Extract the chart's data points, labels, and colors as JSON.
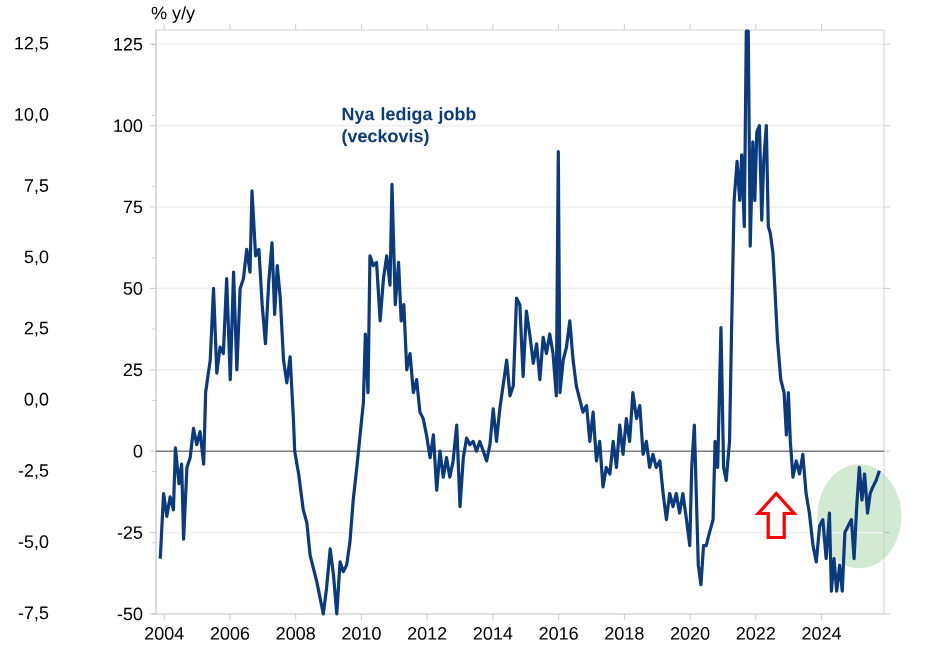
{
  "chart_data": {
    "type": "line",
    "ylabel": "% y/y",
    "xlim": [
      2003.75,
      2025.9
    ],
    "xticks": [
      2004,
      2006,
      2008,
      2010,
      2012,
      2014,
      2016,
      2018,
      2020,
      2022,
      2024
    ],
    "ylim": [
      -50,
      129.375
    ],
    "yticks": [
      -50,
      -25,
      0,
      25,
      50,
      75,
      100,
      125
    ],
    "y2lim": [
      -7.5,
      13
    ],
    "y2ticks": [
      {
        "value": -7.5,
        "label": "-7,5"
      },
      {
        "value": -5,
        "label": "-5,0"
      },
      {
        "value": -2.5,
        "label": "-2,5"
      },
      {
        "value": 0,
        "label": "0,0"
      },
      {
        "value": 2.5,
        "label": "2,5"
      },
      {
        "value": 5,
        "label": "5,0"
      },
      {
        "value": 7.5,
        "label": "7,5"
      },
      {
        "value": 10,
        "label": "10,0"
      },
      {
        "value": 12.5,
        "label": "12,5"
      }
    ],
    "grid": "y",
    "ref_lines": [
      {
        "axis": "y",
        "value": 0,
        "color": "#808080"
      }
    ],
    "series": [
      {
        "name": "Nya lediga jobb (veckovis)",
        "color": "#0b3a7e",
        "x": [
          2003.88,
          2003.98,
          2004.08,
          2004.18,
          2004.28,
          2004.34,
          2004.45,
          2004.53,
          2004.59,
          2004.69,
          2004.79,
          2004.89,
          2004.99,
          2005.09,
          2005.2,
          2005.26,
          2005.4,
          2005.5,
          2005.6,
          2005.7,
          2005.8,
          2005.9,
          2006.01,
          2006.11,
          2006.21,
          2006.31,
          2006.41,
          2006.51,
          2006.61,
          2006.67,
          2006.78,
          2006.88,
          2006.98,
          2007.08,
          2007.18,
          2007.28,
          2007.36,
          2007.44,
          2007.53,
          2007.63,
          2007.73,
          2007.83,
          2007.93,
          2007.97,
          2008.09,
          2008.23,
          2008.34,
          2008.44,
          2008.54,
          2008.64,
          2008.74,
          2008.84,
          2008.94,
          2009.05,
          2009.15,
          2009.25,
          2009.35,
          2009.45,
          2009.55,
          2009.65,
          2009.75,
          2009.86,
          2009.96,
          2010.06,
          2010.12,
          2010.2,
          2010.26,
          2010.36,
          2010.46,
          2010.57,
          2010.67,
          2010.77,
          2010.87,
          2010.93,
          2011.03,
          2011.13,
          2011.21,
          2011.29,
          2011.38,
          2011.48,
          2011.58,
          2011.68,
          2011.78,
          2011.88,
          2011.98,
          2012.09,
          2012.19,
          2012.29,
          2012.39,
          2012.49,
          2012.59,
          2012.69,
          2012.79,
          2012.9,
          2013.0,
          2013.1,
          2013.2,
          2013.3,
          2013.4,
          2013.5,
          2013.6,
          2013.71,
          2013.81,
          2013.91,
          2014.01,
          2014.11,
          2014.21,
          2014.31,
          2014.42,
          2014.52,
          2014.62,
          2014.72,
          2014.82,
          2014.92,
          2015.02,
          2015.12,
          2015.23,
          2015.33,
          2015.43,
          2015.53,
          2015.63,
          2015.73,
          2015.83,
          2015.93,
          2015.99,
          2016.04,
          2016.14,
          2016.24,
          2016.34,
          2016.44,
          2016.54,
          2016.64,
          2016.74,
          2016.85,
          2016.95,
          2017.05,
          2017.15,
          2017.25,
          2017.35,
          2017.45,
          2017.56,
          2017.66,
          2017.76,
          2017.86,
          2017.96,
          2018.06,
          2018.16,
          2018.26,
          2018.37,
          2018.47,
          2018.57,
          2018.67,
          2018.77,
          2018.87,
          2018.97,
          2019.08,
          2019.18,
          2019.28,
          2019.38,
          2019.48,
          2019.58,
          2019.68,
          2019.78,
          2019.89,
          2019.99,
          2020.05,
          2020.13,
          2020.25,
          2020.33,
          2020.41,
          2020.49,
          2020.59,
          2020.7,
          2020.76,
          2020.84,
          2020.94,
          2021.02,
          2021.1,
          2021.2,
          2021.26,
          2021.34,
          2021.43,
          2021.51,
          2021.57,
          2021.65,
          2021.71,
          2021.77,
          2021.83,
          2021.91,
          2021.97,
          2022.03,
          2022.11,
          2022.18,
          2022.24,
          2022.32,
          2022.38,
          2022.44,
          2022.52,
          2022.58,
          2022.66,
          2022.76,
          2022.86,
          2022.93,
          2022.99,
          2023.05,
          2023.13,
          2023.23,
          2023.33,
          2023.43,
          2023.53,
          2023.63,
          2023.74,
          2023.84,
          2023.94,
          2024.04,
          2024.14,
          2024.24,
          2024.3,
          2024.38,
          2024.46,
          2024.55,
          2024.63,
          2024.71,
          2024.81,
          2024.91,
          2024.99,
          2025.07,
          2025.15,
          2025.23,
          2025.31,
          2025.4,
          2025.48,
          2025.56,
          2025.66,
          2025.76
        ],
        "values": [
          -33,
          -13,
          -20,
          -14,
          -18,
          1,
          -10,
          -4,
          -27,
          -5,
          -2,
          7,
          2,
          6,
          -4,
          18,
          28,
          50,
          24,
          32,
          30,
          53,
          22,
          55,
          25,
          50,
          53,
          62,
          55,
          80,
          60,
          62,
          45,
          33,
          52,
          64,
          42,
          57,
          47,
          28,
          21,
          29,
          10,
          0,
          -7,
          -18,
          -22,
          -32,
          -36,
          -40,
          -45,
          -50,
          -42,
          -30,
          -38,
          -50,
          -34,
          -37,
          -35,
          -28,
          -15,
          -5,
          5,
          15,
          36,
          18,
          60,
          57,
          58,
          40,
          53,
          60,
          51,
          82,
          45,
          58,
          40,
          45,
          25,
          30,
          18,
          22,
          12,
          10,
          5,
          -2,
          5,
          -12,
          0,
          -8,
          -2,
          -8,
          -3,
          8,
          -17,
          -2,
          4,
          2,
          3,
          0,
          3,
          0,
          -3,
          2,
          13,
          3,
          13,
          20,
          28,
          17,
          20,
          47,
          45,
          23,
          43,
          36,
          27,
          33,
          22,
          35,
          30,
          36,
          30,
          17,
          92,
          18,
          28,
          32,
          40,
          28,
          20,
          16,
          12,
          14,
          3,
          12,
          -3,
          3,
          -11,
          -5,
          -7,
          3,
          -5,
          8,
          -1,
          10,
          3,
          18,
          10,
          14,
          -1,
          3,
          -5,
          -1,
          -5,
          -3,
          -13,
          -21,
          -13,
          -17,
          -13,
          -19,
          -13,
          -21,
          -29,
          -5,
          8,
          -35,
          -41,
          -29,
          -29,
          -25,
          -21,
          3,
          -5,
          38,
          -5,
          -9,
          3,
          36,
          77,
          89,
          77,
          91,
          69,
          129,
          129,
          63,
          95,
          77,
          98,
          100,
          71,
          89,
          100,
          69,
          67,
          61,
          50,
          34,
          22,
          18,
          5,
          18,
          3,
          -8,
          -3,
          -7,
          -1,
          -13,
          -19,
          -29,
          -34,
          -23,
          -21,
          -33,
          -19,
          -43,
          -33,
          -43,
          -35,
          -43,
          -25,
          -23,
          -21,
          -33,
          -17,
          -5,
          -15,
          -7,
          -19,
          -13,
          -11,
          -9,
          -6
        ]
      }
    ]
  }
}
